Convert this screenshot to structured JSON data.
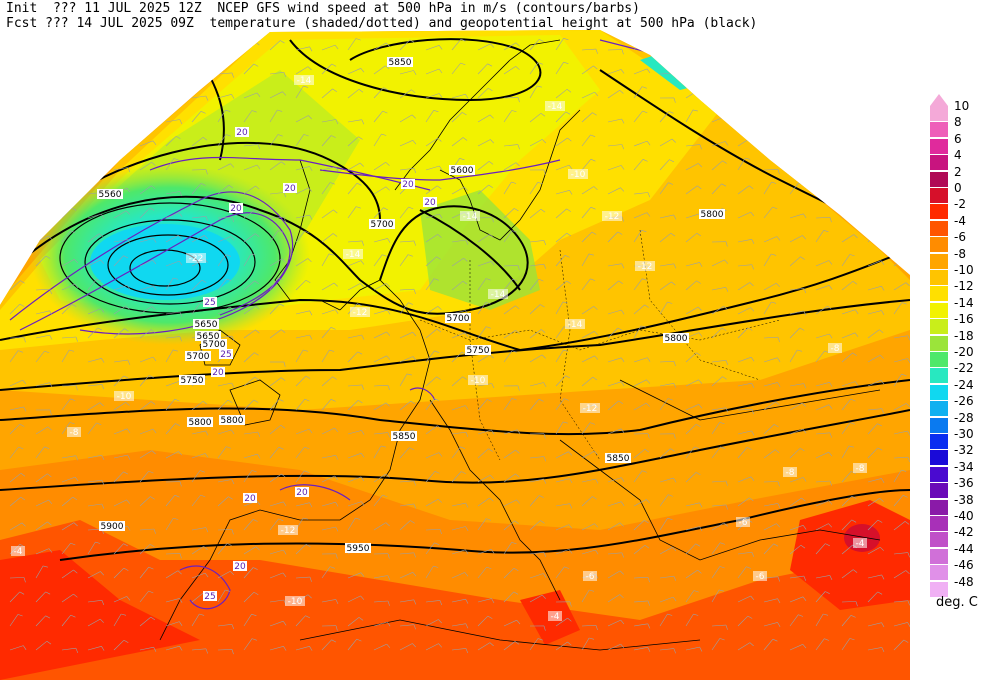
{
  "header": {
    "line1": "Init  ??? 11 JUL 2025 12Z  NCEP GFS wind speed at 500 hPa in m/s (contours/barbs)",
    "line2": "Fcst ??? 14 JUL 2025 09Z  temperature (shaded/dotted) and geopotential height at 500 hPa (black)"
  },
  "legend": {
    "units": "deg. C",
    "entries": [
      {
        "label": "10",
        "color": "#f4a9d8"
      },
      {
        "label": "8",
        "color": "#ee5fb9"
      },
      {
        "label": "6",
        "color": "#e02a9c"
      },
      {
        "label": "4",
        "color": "#c8147f"
      },
      {
        "label": "2",
        "color": "#b00a55"
      },
      {
        "label": "0",
        "color": "#d6102a"
      },
      {
        "label": "-2",
        "color": "#ff2a00"
      },
      {
        "label": "-4",
        "color": "#ff5500"
      },
      {
        "label": "-6",
        "color": "#ff8c00"
      },
      {
        "label": "-8",
        "color": "#ffa500"
      },
      {
        "label": "-10",
        "color": "#ffc400"
      },
      {
        "label": "-12",
        "color": "#ffe000"
      },
      {
        "label": "-14",
        "color": "#f2f200"
      },
      {
        "label": "-16",
        "color": "#c9ee1a"
      },
      {
        "label": "-18",
        "color": "#9be43a"
      },
      {
        "label": "-20",
        "color": "#4ee86a"
      },
      {
        "label": "-22",
        "color": "#28e8c0"
      },
      {
        "label": "-24",
        "color": "#10d8f0"
      },
      {
        "label": "-26",
        "color": "#10b0f0"
      },
      {
        "label": "-28",
        "color": "#0a7af0"
      },
      {
        "label": "-30",
        "color": "#0a2ef0"
      },
      {
        "label": "-32",
        "color": "#1a0ad8"
      },
      {
        "label": "-34",
        "color": "#4a0ad0"
      },
      {
        "label": "-36",
        "color": "#6a0ab8"
      },
      {
        "label": "-38",
        "color": "#8a1aa8"
      },
      {
        "label": "-40",
        "color": "#a830b8"
      },
      {
        "label": "-42",
        "color": "#c050c8"
      },
      {
        "label": "-44",
        "color": "#d070d8"
      },
      {
        "label": "-46",
        "color": "#e090e8"
      },
      {
        "label": "-48",
        "color": "#f0b0f4"
      }
    ]
  },
  "map": {
    "height_labels": [
      "5850",
      "5650",
      "5560",
      "5700",
      "5700",
      "5800",
      "5750",
      "5800",
      "5700",
      "5750",
      "5800",
      "5850",
      "5900",
      "5950",
      "5850",
      "5600",
      "5650",
      "5700",
      "5800"
    ],
    "temp_labels": [
      "-14",
      "-14",
      "-12",
      "-10",
      "-14",
      "-14",
      "-12",
      "-22",
      "-14",
      "-12",
      "-14",
      "-12",
      "-10",
      "-8",
      "-10",
      "-12",
      "-8",
      "-8",
      "-6",
      "-8",
      "-6",
      "-4",
      "-10",
      "-12",
      "-4",
      "-4",
      "-6"
    ],
    "wind_labels": [
      "20",
      "20",
      "20",
      "20",
      "20",
      "25",
      "20",
      "25",
      "20",
      "20",
      "25",
      "30",
      "20"
    ],
    "colors": {
      "sea_background": "#ffffff",
      "height_contour": "#000000",
      "wind_contour": "#5a1fb0",
      "coastline": "#000000"
    }
  }
}
